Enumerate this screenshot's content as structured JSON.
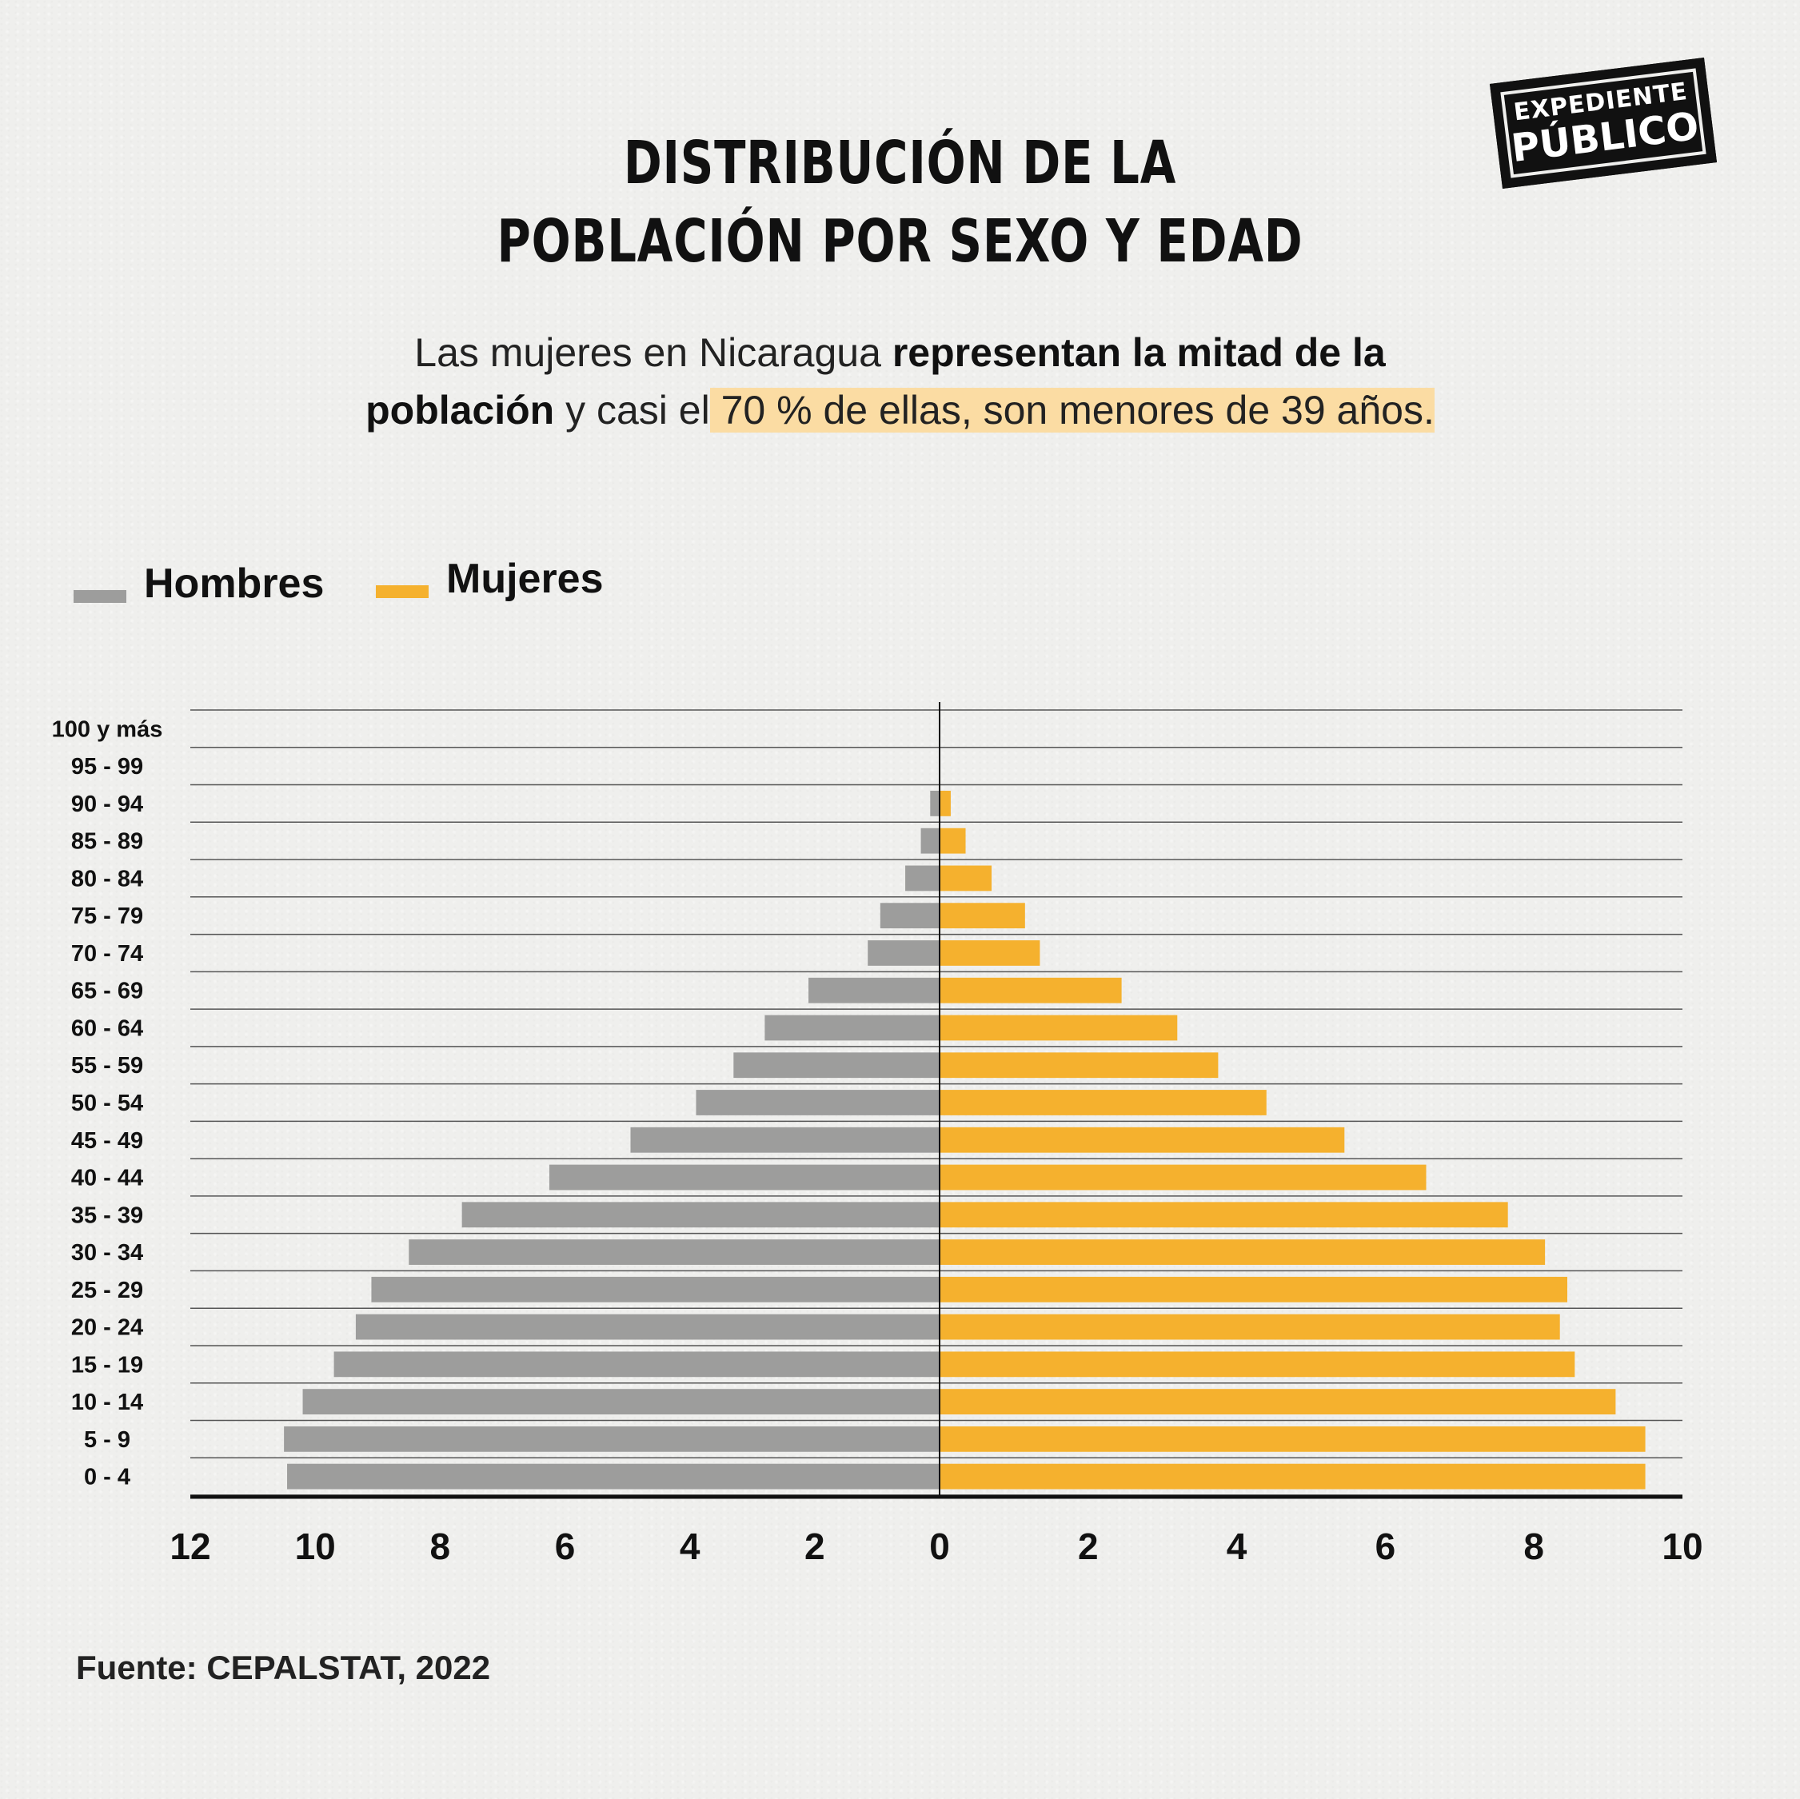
{
  "title": {
    "line1": "DISTRIBUCIÓN DE LA",
    "line2": "POBLACIÓN POR SEXO Y EDAD"
  },
  "subtitle": {
    "part1": "Las mujeres en Nicaragua ",
    "bold1": "representan la mitad de la",
    "bold2": "población",
    "part2": " y casi el",
    "highlight": " 70 % de ellas, son menores de 39 años."
  },
  "logo": {
    "line1": "EXPEDIENTE",
    "line2": "PÚBLICO"
  },
  "source": "Fuente: CEPALSTAT, 2022",
  "colors": {
    "men": "#9d9d9c",
    "women": "#f5b12e",
    "highlight": "#fbdca3"
  },
  "chart_data": {
    "type": "bar",
    "orientation": "horizontal-population-pyramid",
    "categories": [
      "100 y más",
      "95 - 99",
      "90 - 94",
      "85 - 89",
      "80 - 84",
      "75 - 79",
      "70 - 74",
      "65 - 69",
      "60 - 64",
      "55 - 59",
      "50 - 54",
      "45 - 49",
      "40 - 44",
      "35 - 39",
      "30 - 34",
      "25 - 29",
      "20 - 24",
      "15 - 19",
      "10 - 14",
      "5 - 9",
      "0 - 4"
    ],
    "series": [
      {
        "name": "Hombres",
        "values": [
          0,
          0,
          0.15,
          0.3,
          0.55,
          0.95,
          1.15,
          2.1,
          2.8,
          3.3,
          3.9,
          4.95,
          6.25,
          7.65,
          8.5,
          9.1,
          9.35,
          9.7,
          10.2,
          10.5,
          10.45
        ]
      },
      {
        "name": "Mujeres",
        "values": [
          0,
          0,
          0.15,
          0.35,
          0.7,
          1.15,
          1.35,
          2.45,
          3.2,
          3.75,
          4.4,
          5.45,
          6.55,
          7.65,
          8.15,
          8.45,
          8.35,
          8.55,
          9.1,
          9.5,
          9.5
        ]
      }
    ],
    "xticks_left": [
      "12",
      "10",
      "8",
      "6",
      "4",
      "2",
      "0"
    ],
    "xticks_right": [
      "2",
      "4",
      "6",
      "8",
      "10"
    ],
    "xlim_left": [
      12,
      0
    ],
    "xlim_right": [
      0,
      10
    ],
    "legend": "top-left",
    "grid": true
  }
}
